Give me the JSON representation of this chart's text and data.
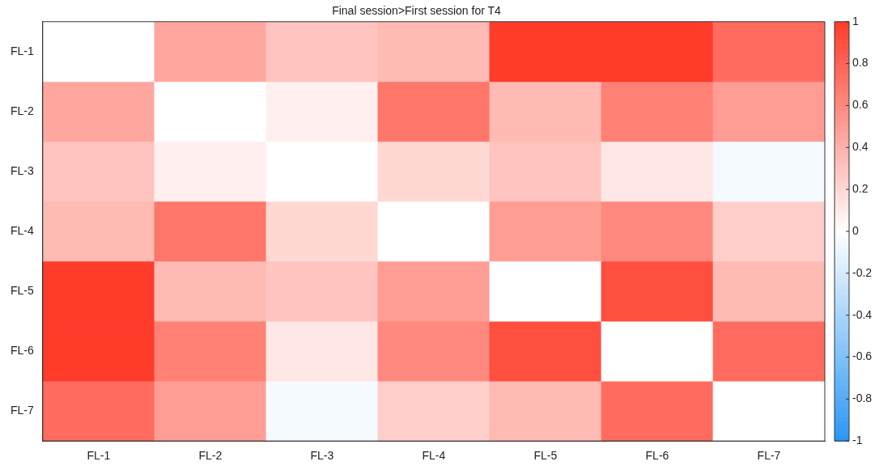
{
  "chart_data": {
    "type": "heatmap",
    "title": "Final session>First session for T4",
    "categories": [
      "FL-1",
      "FL-2",
      "FL-3",
      "FL-4",
      "FL-5",
      "FL-6",
      "FL-7"
    ],
    "y_categories": [
      "FL-1",
      "FL-2",
      "FL-3",
      "FL-4",
      "FL-5",
      "FL-6",
      "FL-7"
    ],
    "cells": [
      [
        0,
        0.45,
        0.3,
        0.35,
        1,
        1,
        0.75
      ],
      [
        0.45,
        0,
        0.08,
        0.7,
        0.35,
        0.65,
        0.5
      ],
      [
        0.3,
        0.08,
        0,
        0.2,
        0.3,
        0.12,
        -0.05
      ],
      [
        0.35,
        0.7,
        0.2,
        0,
        0.5,
        0.6,
        0.25
      ],
      [
        1,
        0.35,
        0.3,
        0.5,
        0,
        0.9,
        0.35
      ],
      [
        1,
        0.65,
        0.12,
        0.6,
        0.9,
        0,
        0.75
      ],
      [
        0.75,
        0.5,
        -0.05,
        0.25,
        0.35,
        0.75,
        0
      ]
    ],
    "clim": [
      -1,
      1
    ],
    "cticks": [
      -1,
      -0.8,
      -0.6,
      -0.4,
      -0.2,
      0,
      0.2,
      0.4,
      0.6,
      0.8,
      1
    ]
  }
}
